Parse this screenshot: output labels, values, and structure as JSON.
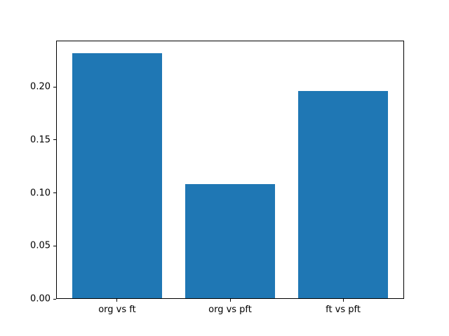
{
  "figure": {
    "background_color": "#ffffff",
    "text_color": "#000000",
    "spine_color": "#000000"
  },
  "chart_data": {
    "type": "bar",
    "categories": [
      "org vs ft",
      "org vs pft",
      "ft vs pft"
    ],
    "values": [
      0.232,
      0.108,
      0.196
    ],
    "title": "",
    "xlabel": "",
    "ylabel": "",
    "ylim": [
      0,
      0.2436
    ],
    "ytick_values": [
      0,
      0.05,
      0.1,
      0.15,
      0.2
    ],
    "ytick_labels": [
      "0.00",
      "0.05",
      "0.10",
      "0.15",
      "0.20"
    ],
    "bar_color": "#1f77b4",
    "bar_width_fraction": 0.8,
    "x_margin_fraction": 0.05,
    "grid": false,
    "legend_position": "none"
  }
}
